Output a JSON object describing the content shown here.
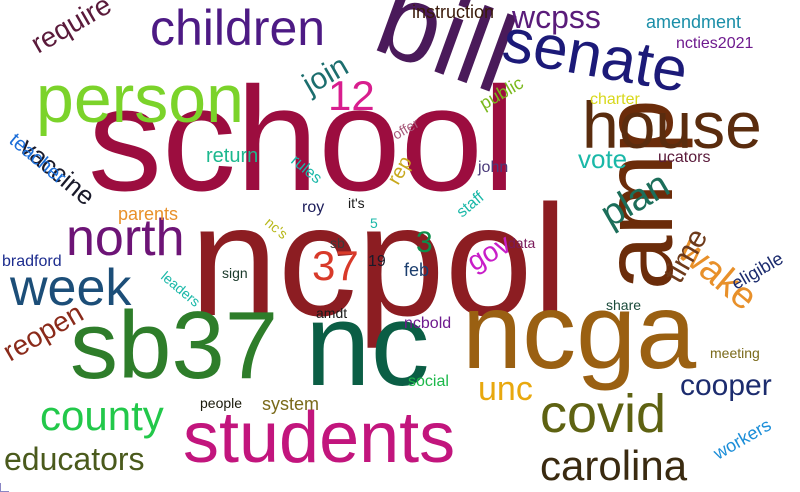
{
  "words": [
    {
      "text": "school",
      "color": "#9c0d3f"
    },
    {
      "text": "ncpol",
      "color": "#8c1d22"
    },
    {
      "text": "nc",
      "color": "#0b5e45"
    },
    {
      "text": "sb37",
      "color": "#2e7d2a"
    },
    {
      "text": "ncga",
      "color": "#9a6012"
    },
    {
      "text": "amp",
      "color": "#6b2c0a"
    },
    {
      "text": "bill",
      "color": "#4a1a5a"
    },
    {
      "text": "person",
      "color": "#7bd32a"
    },
    {
      "text": "students",
      "color": "#c2157d"
    },
    {
      "text": "house",
      "color": "#5a2c0e"
    },
    {
      "text": "senate",
      "color": "#1c1a78"
    },
    {
      "text": "children",
      "color": "#4d1a84"
    },
    {
      "text": "north",
      "color": "#6d1476"
    },
    {
      "text": "week",
      "color": "#1c4e78"
    },
    {
      "text": "covid",
      "color": "#5e6212"
    },
    {
      "text": "county",
      "color": "#22c84a"
    },
    {
      "text": "carolina",
      "color": "#3a2a10"
    },
    {
      "text": "educators",
      "color": "#4a5a1c"
    },
    {
      "text": "wake",
      "color": "#e8902a"
    },
    {
      "text": "plan",
      "color": "#1c6e5a"
    },
    {
      "text": "cooper",
      "color": "#1c2c6e"
    },
    {
      "text": "unc",
      "color": "#e8a80e"
    },
    {
      "text": "wcpss",
      "color": "#5a1c7a"
    },
    {
      "text": "vaccine",
      "color": "#1a1a2a"
    },
    {
      "text": "require",
      "color": "#5a1a3a"
    },
    {
      "text": "join",
      "color": "#1c6e6e"
    },
    {
      "text": "12",
      "color": "#d81e8e"
    },
    {
      "text": "37",
      "color": "#d83a2a"
    },
    {
      "text": "3",
      "color": "#0c8e4a"
    },
    {
      "text": "reopen",
      "color": "#8a2a1a"
    },
    {
      "text": "time",
      "color": "#6e3a1a"
    },
    {
      "text": "gov",
      "color": "#c81ec8"
    },
    {
      "text": "vote",
      "color": "#1ab8a8"
    },
    {
      "text": "instruction",
      "color": "#3a1a0a"
    },
    {
      "text": "amendment",
      "color": "#1a8ea8"
    },
    {
      "text": "ncties2021",
      "color": "#6e1a8e"
    },
    {
      "text": "public",
      "color": "#7ab81c"
    },
    {
      "text": "charter",
      "color": "#d8d81c"
    },
    {
      "text": "teacher",
      "color": "#1c6ed8"
    },
    {
      "text": "return",
      "color": "#1cb88e"
    },
    {
      "text": "parents",
      "color": "#e8902a"
    },
    {
      "text": "rules",
      "color": "#1ab8a8"
    },
    {
      "text": "rep",
      "color": "#c8a81c"
    },
    {
      "text": "offer",
      "color": "#a85a7a"
    },
    {
      "text": "john",
      "color": "#4a3a7a"
    },
    {
      "text": "ucators",
      "color": "#5a1a3a"
    },
    {
      "text": "staff",
      "color": "#1ab8a8"
    },
    {
      "text": "eligible",
      "color": "#1c2c6e"
    },
    {
      "text": "roy",
      "color": "#1c1c5a"
    },
    {
      "text": "it's",
      "color": "#1a1a1a"
    },
    {
      "text": "nc's",
      "color": "#b8b81c"
    },
    {
      "text": "5",
      "color": "#1ab8a8"
    },
    {
      "text": "sb",
      "color": "#3a3a3a"
    },
    {
      "text": "19",
      "color": "#1a1a2a"
    },
    {
      "text": "feb",
      "color": "#1c3e6e"
    },
    {
      "text": "data",
      "color": "#7a1a5a"
    },
    {
      "text": "sign",
      "color": "#1a3a2a"
    },
    {
      "text": "bradford",
      "color": "#1c2c8e"
    },
    {
      "text": "leaders",
      "color": "#1ab8a8"
    },
    {
      "text": "share",
      "color": "#1a4a3a"
    },
    {
      "text": "amdt",
      "color": "#1a1a1a"
    },
    {
      "text": "ncbold",
      "color": "#6e1a8e"
    },
    {
      "text": "meeting",
      "color": "#7a6a1a"
    },
    {
      "text": "social",
      "color": "#1cb84a"
    },
    {
      "text": "people",
      "color": "#1a1a0a"
    },
    {
      "text": "system",
      "color": "#7a6a1a"
    },
    {
      "text": "workers",
      "color": "#1c8ed8"
    }
  ]
}
